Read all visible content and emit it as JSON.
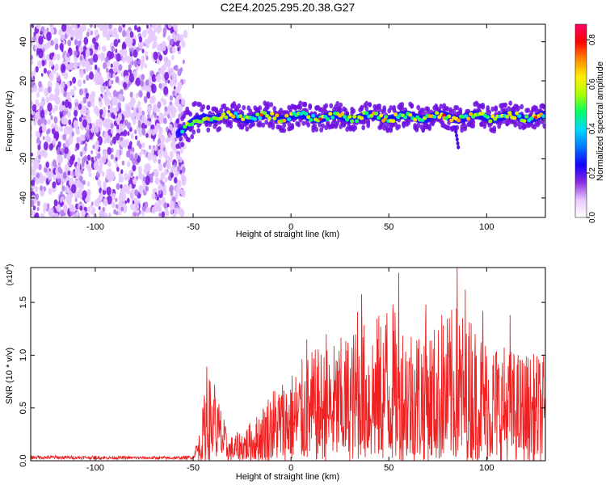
{
  "title": "C2E4.2025.295.20.38.G27",
  "colors": {
    "snr_line": "#ee2222",
    "axis": "#000000",
    "background": "#ffffff"
  },
  "chart_data": [
    {
      "type": "heatmap",
      "name": "spectrogram",
      "xlabel": "Height of straight line (km)",
      "ylabel": "Frequency (Hz)",
      "xlim": [
        -133,
        130
      ],
      "ylim": [
        -50,
        49
      ],
      "xticks": [
        -100,
        -50,
        0,
        50,
        100
      ],
      "xtick_labels": [
        "-100",
        "-50",
        "0",
        "50",
        "100"
      ],
      "yticks": [
        -40,
        -20,
        0,
        20,
        40
      ],
      "ytick_labels": [
        "-40",
        "-20",
        "0",
        "20",
        "40"
      ],
      "noise_region": {
        "x_from": -133,
        "x_to": -55
      },
      "signal_band": {
        "x_from": -58,
        "x_to": 130,
        "center_hz": 1.5,
        "half_width_hz": 6
      },
      "colorbar": {
        "label": "Normalized spectral amplitude",
        "range": [
          0.0,
          0.87
        ],
        "ticks": [
          0.0,
          0.2,
          0.4,
          0.6,
          0.8
        ],
        "tick_labels": [
          "0.0",
          "0.2",
          "0.4",
          "0.6",
          "0.8"
        ],
        "colormap": [
          "#ffffff",
          "#e9c8ff",
          "#8a2be2",
          "#1400ff",
          "#0077ff",
          "#00d8ff",
          "#00ff66",
          "#aaff00",
          "#ffee00",
          "#ff8800",
          "#ff0000",
          "#ff0066"
        ]
      }
    },
    {
      "type": "line",
      "name": "snr",
      "xlabel": "Height of straight line (km)",
      "ylabel": "SNR (10 * v/v)",
      "multiplier_label": "(x10",
      "multiplier_exponent": "4",
      "multiplier_close": ")",
      "xlim": [
        -133,
        130
      ],
      "ylim": [
        0,
        1.83
      ],
      "xticks": [
        -100,
        -50,
        0,
        50,
        100
      ],
      "xtick_labels": [
        "-100",
        "-50",
        "0",
        "50",
        "100"
      ],
      "yticks": [
        0.0,
        0.5,
        1.0,
        1.5
      ],
      "ytick_labels": [
        "0.0",
        "0.5",
        "1.0",
        "1.5"
      ],
      "envelope": [
        {
          "x": -133,
          "y": 0.05
        },
        {
          "x": -60,
          "y": 0.04
        },
        {
          "x": -50,
          "y": 0.05
        },
        {
          "x": -46,
          "y": 0.35
        },
        {
          "x": -43,
          "y": 0.88
        },
        {
          "x": -40,
          "y": 0.72
        },
        {
          "x": -36,
          "y": 0.55
        },
        {
          "x": -32,
          "y": 0.22
        },
        {
          "x": -25,
          "y": 0.3
        },
        {
          "x": -18,
          "y": 0.42
        },
        {
          "x": -10,
          "y": 0.7
        },
        {
          "x": -5,
          "y": 0.78
        },
        {
          "x": 0,
          "y": 0.85
        },
        {
          "x": 10,
          "y": 1.05
        },
        {
          "x": 20,
          "y": 1.1
        },
        {
          "x": 35,
          "y": 1.3
        },
        {
          "x": 50,
          "y": 1.45
        },
        {
          "x": 60,
          "y": 1.35
        },
        {
          "x": 75,
          "y": 1.3
        },
        {
          "x": 85,
          "y": 1.5
        },
        {
          "x": 100,
          "y": 1.2
        },
        {
          "x": 115,
          "y": 1.05
        },
        {
          "x": 130,
          "y": 1.0
        }
      ],
      "peaks": [
        {
          "x": -43,
          "y": 0.89
        },
        {
          "x": -39,
          "y": 0.72
        },
        {
          "x": 8,
          "y": 1.15
        },
        {
          "x": 18,
          "y": 1.2
        },
        {
          "x": 34,
          "y": 1.41
        },
        {
          "x": 36,
          "y": 1.58
        },
        {
          "x": 49,
          "y": 1.4
        },
        {
          "x": 52,
          "y": 1.48
        },
        {
          "x": 55,
          "y": 1.78
        },
        {
          "x": 69,
          "y": 1.48
        },
        {
          "x": 77,
          "y": 1.38
        },
        {
          "x": 85,
          "y": 1.83
        },
        {
          "x": 89,
          "y": 1.62
        },
        {
          "x": 92,
          "y": 1.3
        },
        {
          "x": 98,
          "y": 1.42
        },
        {
          "x": 112,
          "y": 1.38
        }
      ]
    }
  ]
}
